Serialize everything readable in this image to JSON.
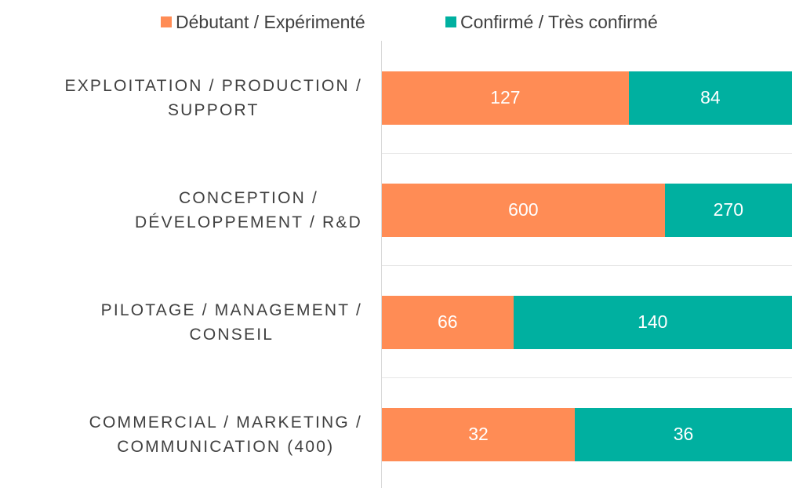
{
  "chart_data": {
    "type": "bar",
    "orientation": "horizontal",
    "stacked": "percent",
    "categories": [
      "EXPLOITATION / PRODUCTION /\nSUPPORT",
      "CONCEPTION /\nDÉVELOPPEMENT / R&D",
      "PILOTAGE / MANAGEMENT /\nCONSEIL",
      "COMMERCIAL / MARKETING /\nCOMMUNICATION (400)"
    ],
    "series": [
      {
        "name": "Débutant / Expérimenté",
        "color": "#ff8c55",
        "values": [
          127,
          600,
          66,
          32
        ]
      },
      {
        "name": "Confirmé / Très confirmé",
        "color": "#00b0a0",
        "values": [
          84,
          270,
          140,
          36
        ]
      }
    ],
    "legend": "top",
    "grid": true
  }
}
